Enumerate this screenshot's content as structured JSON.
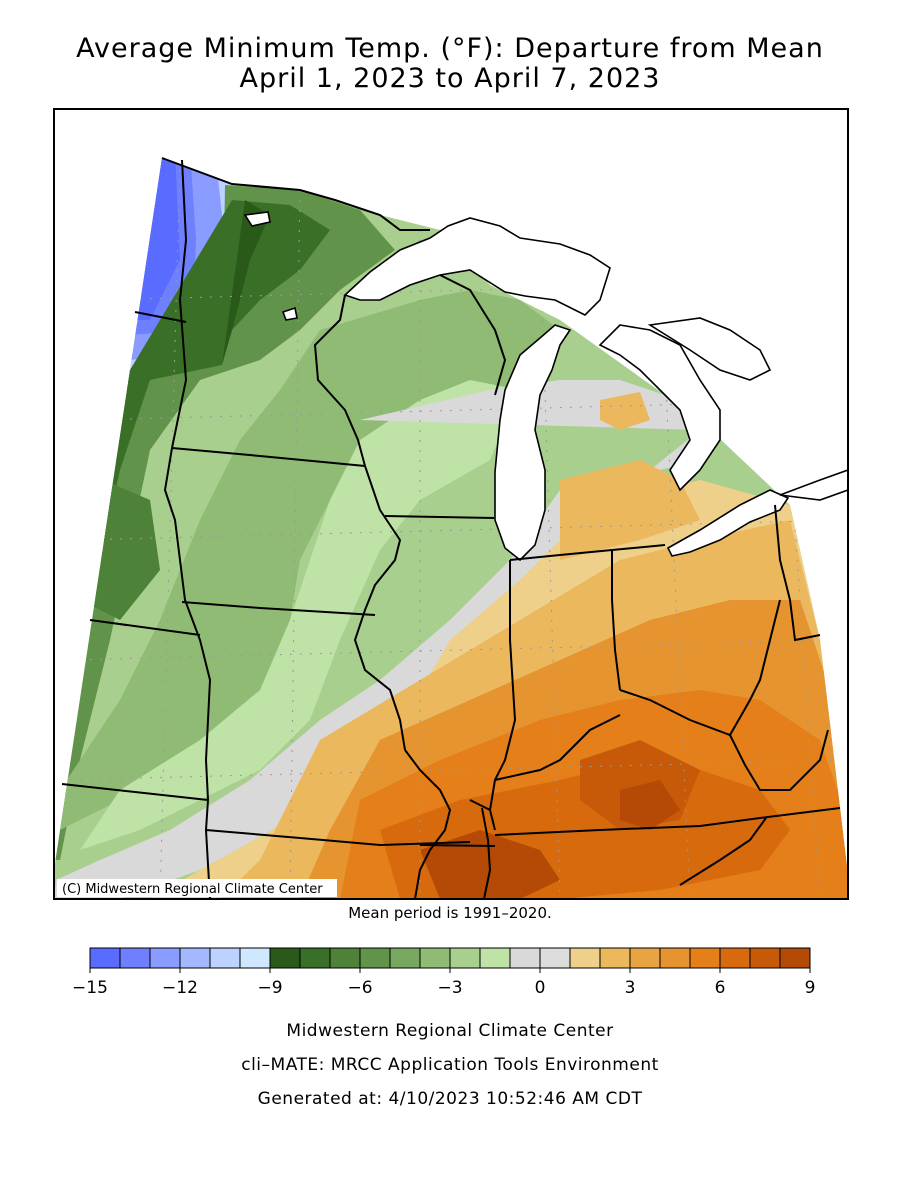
{
  "title_line1": "Average Minimum Temp. (°F): Departure from Mean",
  "title_line2": "April 1, 2023 to April 7, 2023",
  "copyright": "(C) Midwestern Regional Climate Center",
  "mean_period": "Mean period is 1991–2020.",
  "legend": {
    "colors": [
      "#5a6cff",
      "#6f80ff",
      "#8a9cff",
      "#a3b8ff",
      "#bdd2ff",
      "#cfe8ff",
      "#2a5a1a",
      "#3a6f28",
      "#4d8238",
      "#61944a",
      "#78a85f",
      "#8fbb75",
      "#a8cf8e",
      "#bfe2a6",
      "#d9d9d9",
      "#dcdcdc",
      "#eed08a",
      "#ebb85e",
      "#e8a443",
      "#e69430",
      "#e57f1a",
      "#d86a0e",
      "#c75a08",
      "#b44a05"
    ],
    "tick_labels": [
      "−15",
      "−12",
      "−9",
      "−6",
      "−3",
      "0",
      "3",
      "6",
      "9"
    ]
  },
  "footer": {
    "line1": "Midwestern Regional Climate Center",
    "line2": "cli–MATE: MRCC Application Tools Environment",
    "line3": "Generated at: 4/10/2023 10:52:46 AM CDT"
  }
}
